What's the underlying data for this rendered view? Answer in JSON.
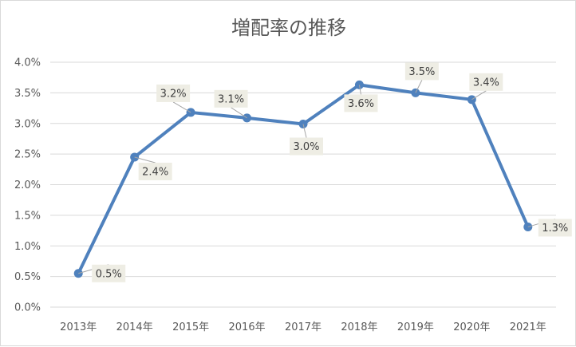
{
  "chart_data": {
    "type": "line",
    "title": "増配率の推移",
    "categories": [
      "2013年",
      "2014年",
      "2015年",
      "2016年",
      "2017年",
      "2018年",
      "2019年",
      "2020年",
      "2021年"
    ],
    "series": [
      {
        "values": [
          0.55,
          2.45,
          3.18,
          3.09,
          2.99,
          3.63,
          3.5,
          3.39,
          1.31
        ],
        "data_labels": [
          "0.5%",
          "2.4%",
          "3.2%",
          "3.1%",
          "3.0%",
          "3.6%",
          "3.5%",
          "3.4%",
          "1.3%"
        ],
        "color": "#4f81bd"
      }
    ],
    "y_ticks": [
      "0.0%",
      "0.5%",
      "1.0%",
      "1.5%",
      "2.0%",
      "2.5%",
      "3.0%",
      "3.5%",
      "4.0%"
    ],
    "ylim": [
      0,
      4.0
    ],
    "grid": true,
    "legend": "none",
    "label_box_color": "#eeede4",
    "gridline_color": "#d9d9d9"
  }
}
